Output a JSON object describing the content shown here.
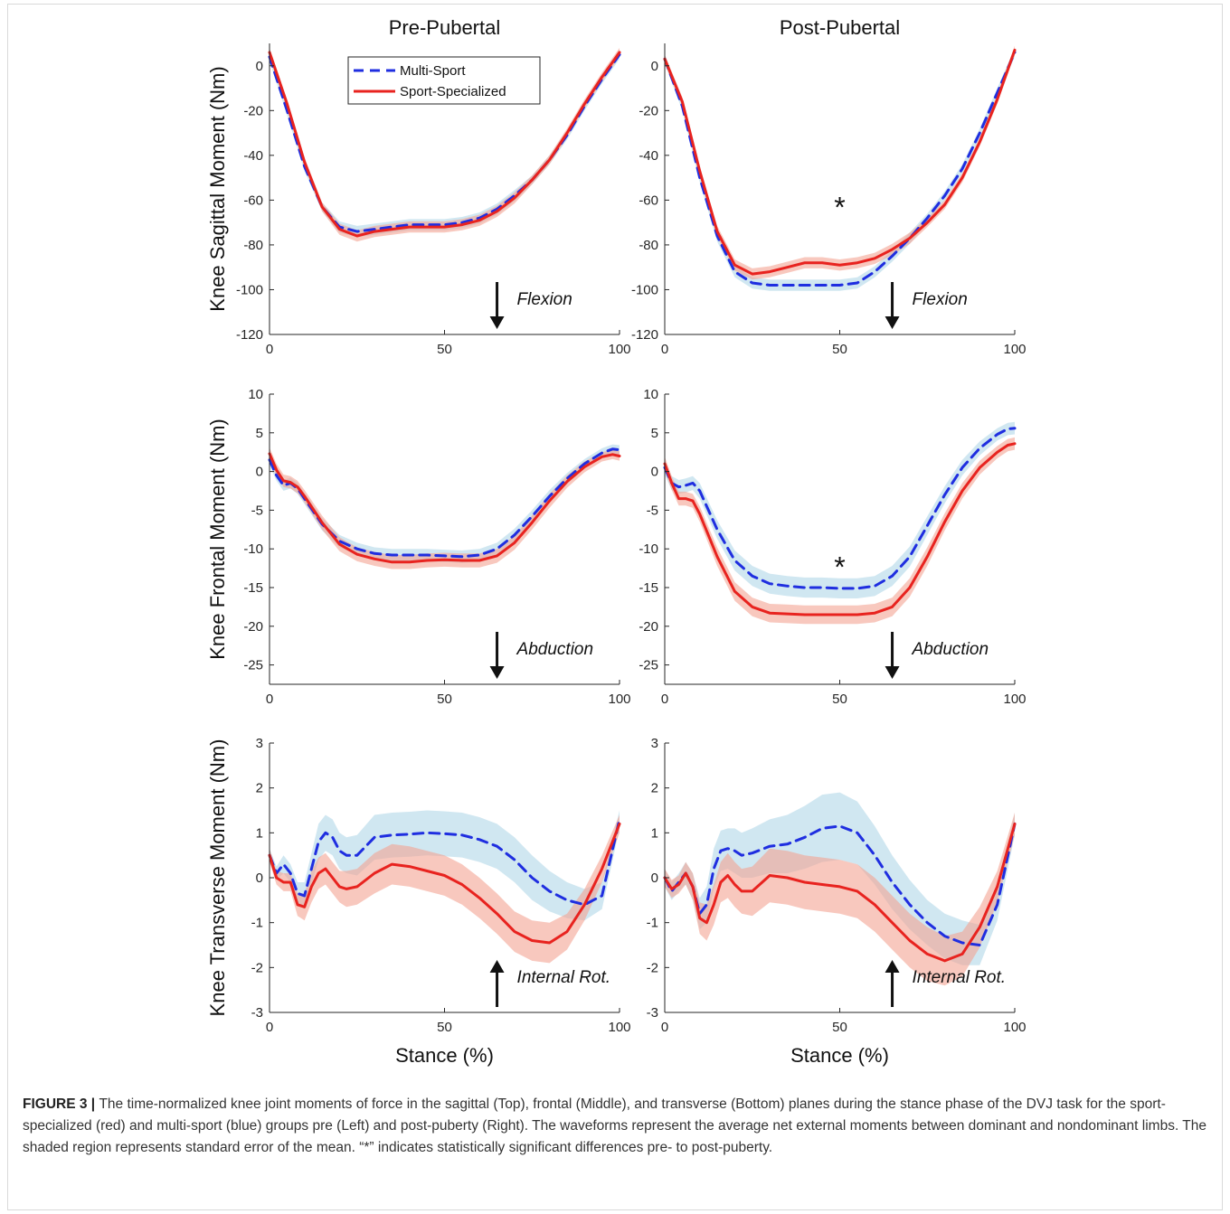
{
  "figure": {
    "caption_lead": "FIGURE 3",
    "caption_sep": " | ",
    "caption_text": "The time-normalized knee joint moments of force in the sagittal (Top), frontal (Middle), and transverse (Bottom) planes during the stance phase of the DVJ task for the sport-specialized (red) and multi-sport (blue) groups pre (Left) and post-puberty (Right). The waveforms represent the average net external moments between dominant and nondominant limbs. The shaded region represents standard error of the mean. “*” indicates statistically significant differences pre- to post-puberty.",
    "column_titles": [
      "Pre-Pubertal",
      "Post-Pubertal"
    ],
    "xlabel": "Stance (%)",
    "colors": {
      "multi_sport": "#1f2ee0",
      "sport_specialized": "#e8231f",
      "multi_band": "#a9d4e6",
      "spec_band": "#f4a393"
    }
  },
  "chart_data": [
    {
      "type": "line",
      "plane": "sagittal",
      "column": "Pre-Pubertal",
      "ylabel": "Knee Sagittal Moment (Nm)",
      "xlim": [
        0,
        100
      ],
      "ylim": [
        -120,
        10
      ],
      "xticks": [
        0,
        50,
        100
      ],
      "yticks": [
        -120,
        -100,
        -80,
        -60,
        -40,
        -20,
        0
      ],
      "annotation": "Flexion",
      "arrow": "down",
      "significant": false,
      "legend": {
        "entries": [
          "Multi-Sport",
          "Sport-Specialized"
        ],
        "position": "top-center"
      },
      "x": [
        0,
        5,
        10,
        15,
        20,
        25,
        30,
        35,
        40,
        45,
        50,
        55,
        60,
        65,
        70,
        75,
        80,
        85,
        90,
        95,
        100
      ],
      "series": [
        {
          "name": "Multi-Sport",
          "style": "dashed",
          "values": [
            4,
            -20,
            -45,
            -63,
            -72,
            -74,
            -73,
            -72,
            -71,
            -71,
            -71,
            -70,
            -68,
            -64,
            -58,
            -51,
            -42,
            -31,
            -18,
            -6,
            5
          ],
          "se": [
            2,
            2,
            2,
            2,
            2.5,
            2.5,
            2.5,
            2.5,
            2.5,
            2.5,
            2.5,
            2.5,
            2.5,
            2.5,
            2.5,
            2,
            2,
            2,
            2,
            2,
            2
          ]
        },
        {
          "name": "Sport-Specialized",
          "style": "solid",
          "values": [
            6,
            -17,
            -43,
            -63,
            -73,
            -76,
            -74,
            -73,
            -72,
            -72,
            -72,
            -71,
            -69,
            -65,
            -59,
            -51,
            -42,
            -30,
            -17,
            -5,
            6
          ],
          "se": [
            2,
            2,
            2,
            2,
            2.5,
            2.5,
            2.5,
            2.5,
            2.5,
            2.5,
            2.5,
            2.5,
            2.5,
            2.5,
            2.5,
            2,
            2,
            2,
            2,
            2,
            2
          ]
        }
      ]
    },
    {
      "type": "line",
      "plane": "sagittal",
      "column": "Post-Pubertal",
      "ylabel": "",
      "xlim": [
        0,
        100
      ],
      "ylim": [
        -120,
        10
      ],
      "xticks": [
        0,
        50,
        100
      ],
      "yticks": [
        -120,
        -100,
        -80,
        -60,
        -40,
        -20,
        0
      ],
      "annotation": "Flexion",
      "arrow": "down",
      "significant": true,
      "x": [
        0,
        5,
        10,
        15,
        20,
        25,
        30,
        35,
        40,
        45,
        50,
        55,
        60,
        65,
        70,
        75,
        80,
        85,
        90,
        95,
        100
      ],
      "series": [
        {
          "name": "Multi-Sport",
          "style": "dashed",
          "values": [
            3,
            -18,
            -50,
            -76,
            -92,
            -97,
            -98,
            -98,
            -98,
            -98,
            -98,
            -97,
            -92,
            -85,
            -77,
            -68,
            -58,
            -46,
            -30,
            -12,
            6
          ],
          "se": [
            2,
            2,
            2,
            2.5,
            2.5,
            2.5,
            2.5,
            2.5,
            2.5,
            2.5,
            2.5,
            2.5,
            2.5,
            2.5,
            2.5,
            2,
            2,
            2,
            2,
            2,
            2
          ]
        },
        {
          "name": "Sport-Specialized",
          "style": "solid",
          "values": [
            3,
            -16,
            -47,
            -74,
            -89,
            -93,
            -92,
            -90,
            -88,
            -88,
            -89,
            -88,
            -86,
            -82,
            -77,
            -70,
            -62,
            -50,
            -34,
            -15,
            7
          ],
          "se": [
            2,
            2,
            2,
            2.5,
            2.5,
            2.5,
            2.5,
            2.5,
            2.5,
            2.5,
            2.5,
            2.5,
            2.5,
            2.5,
            2.5,
            2,
            2,
            2,
            2,
            2,
            2
          ]
        }
      ]
    },
    {
      "type": "line",
      "plane": "frontal",
      "column": "Pre-Pubertal",
      "ylabel": "Knee Frontal Moment (Nm)",
      "xlim": [
        0,
        100
      ],
      "ylim": [
        -27.5,
        10
      ],
      "xticks": [
        0,
        50,
        100
      ],
      "yticks": [
        -25,
        -20,
        -15,
        -10,
        -5,
        0,
        5,
        10
      ],
      "annotation": "Abduction",
      "arrow": "down",
      "significant": false,
      "x": [
        0,
        2,
        4,
        6,
        8,
        10,
        15,
        20,
        25,
        30,
        35,
        40,
        45,
        50,
        55,
        60,
        65,
        70,
        75,
        80,
        85,
        90,
        95,
        98,
        100
      ],
      "series": [
        {
          "name": "Multi-Sport",
          "style": "dashed",
          "values": [
            1.5,
            -0.5,
            -1.8,
            -1.5,
            -2.2,
            -3.5,
            -6.8,
            -9.0,
            -10.0,
            -10.6,
            -10.8,
            -10.8,
            -10.8,
            -10.9,
            -11.0,
            -10.8,
            -10.0,
            -8.2,
            -5.8,
            -3.2,
            -0.9,
            1.0,
            2.4,
            2.9,
            2.8
          ],
          "se": [
            0.7,
            0.7,
            0.7,
            0.7,
            0.7,
            0.7,
            0.8,
            0.8,
            0.8,
            0.8,
            0.8,
            0.8,
            0.8,
            0.8,
            0.8,
            0.8,
            0.8,
            0.8,
            0.8,
            0.8,
            0.7,
            0.6,
            0.6,
            0.6,
            0.6
          ]
        },
        {
          "name": "Sport-Specialized",
          "style": "solid",
          "values": [
            2.3,
            0.2,
            -1.2,
            -1.4,
            -2.0,
            -3.2,
            -6.6,
            -9.4,
            -10.7,
            -11.3,
            -11.7,
            -11.7,
            -11.5,
            -11.4,
            -11.5,
            -11.5,
            -10.9,
            -9.2,
            -6.6,
            -3.8,
            -1.3,
            0.6,
            1.9,
            2.2,
            2.0
          ],
          "se": [
            0.8,
            0.8,
            0.8,
            0.8,
            0.8,
            0.8,
            0.9,
            0.9,
            0.9,
            0.9,
            0.9,
            0.9,
            0.9,
            0.9,
            0.9,
            0.9,
            0.9,
            0.9,
            0.9,
            0.9,
            0.8,
            0.7,
            0.6,
            0.6,
            0.6
          ]
        }
      ]
    },
    {
      "type": "line",
      "plane": "frontal",
      "column": "Post-Pubertal",
      "ylabel": "",
      "xlim": [
        0,
        100
      ],
      "ylim": [
        -27.5,
        10
      ],
      "xticks": [
        0,
        50,
        100
      ],
      "yticks": [
        -25,
        -20,
        -15,
        -10,
        -5,
        0,
        5,
        10
      ],
      "annotation": "Abduction",
      "arrow": "down",
      "significant": true,
      "x": [
        0,
        2,
        4,
        6,
        8,
        10,
        15,
        20,
        25,
        30,
        35,
        40,
        45,
        50,
        55,
        60,
        65,
        70,
        75,
        80,
        85,
        90,
        95,
        98,
        100
      ],
      "series": [
        {
          "name": "Multi-Sport",
          "style": "dashed",
          "values": [
            0.5,
            -1.5,
            -2.0,
            -1.8,
            -1.5,
            -2.5,
            -7.5,
            -11.5,
            -13.5,
            -14.5,
            -14.8,
            -15.0,
            -15.0,
            -15.1,
            -15.1,
            -14.8,
            -13.5,
            -11.0,
            -7.0,
            -3.0,
            0.5,
            3.0,
            4.8,
            5.5,
            5.6
          ],
          "se": [
            0.9,
            0.9,
            0.9,
            0.9,
            0.9,
            1.0,
            1.2,
            1.3,
            1.3,
            1.3,
            1.3,
            1.3,
            1.3,
            1.3,
            1.3,
            1.3,
            1.3,
            1.3,
            1.2,
            1.1,
            1.0,
            0.9,
            0.8,
            0.8,
            0.8
          ]
        },
        {
          "name": "Sport-Specialized",
          "style": "solid",
          "values": [
            1.0,
            -1.5,
            -3.5,
            -3.5,
            -3.8,
            -5.5,
            -11.0,
            -15.5,
            -17.5,
            -18.3,
            -18.4,
            -18.5,
            -18.5,
            -18.5,
            -18.5,
            -18.3,
            -17.5,
            -15.0,
            -11.0,
            -6.5,
            -2.5,
            0.5,
            2.5,
            3.4,
            3.6
          ],
          "se": [
            0.9,
            0.9,
            0.9,
            0.9,
            0.9,
            1.0,
            1.2,
            1.2,
            1.2,
            1.2,
            1.2,
            1.2,
            1.2,
            1.2,
            1.2,
            1.2,
            1.2,
            1.2,
            1.2,
            1.1,
            1.0,
            0.9,
            0.8,
            0.8,
            0.8
          ]
        }
      ]
    },
    {
      "type": "line",
      "plane": "transverse",
      "column": "Pre-Pubertal",
      "ylabel": "Knee Transverse Moment (Nm)",
      "xlim": [
        0,
        100
      ],
      "ylim": [
        -3,
        3
      ],
      "xticks": [
        0,
        50,
        100
      ],
      "yticks": [
        -3,
        -2,
        -1,
        0,
        1,
        2,
        3
      ],
      "annotation": "Internal Rot.",
      "arrow": "up",
      "significant": false,
      "x": [
        0,
        2,
        4,
        6,
        8,
        10,
        12,
        14,
        16,
        18,
        20,
        22,
        25,
        30,
        35,
        40,
        45,
        50,
        55,
        60,
        65,
        70,
        75,
        80,
        85,
        90,
        95,
        100
      ],
      "series": [
        {
          "name": "Multi-Sport",
          "style": "dashed",
          "values": [
            0.5,
            0.1,
            0.3,
            0.1,
            -0.35,
            -0.4,
            0.2,
            0.8,
            1.0,
            0.9,
            0.6,
            0.5,
            0.5,
            0.9,
            0.95,
            0.97,
            1.0,
            0.98,
            0.95,
            0.85,
            0.7,
            0.4,
            0.0,
            -0.3,
            -0.5,
            -0.6,
            -0.4,
            1.3
          ],
          "se": [
            0.15,
            0.15,
            0.2,
            0.2,
            0.25,
            0.3,
            0.35,
            0.4,
            0.4,
            0.4,
            0.4,
            0.4,
            0.45,
            0.5,
            0.5,
            0.5,
            0.5,
            0.5,
            0.5,
            0.5,
            0.5,
            0.5,
            0.5,
            0.45,
            0.4,
            0.35,
            0.3,
            0.2
          ]
        },
        {
          "name": "Sport-Specialized",
          "style": "solid",
          "values": [
            0.5,
            0.0,
            -0.1,
            -0.1,
            -0.6,
            -0.65,
            -0.2,
            0.1,
            0.2,
            0.0,
            -0.2,
            -0.25,
            -0.2,
            0.1,
            0.3,
            0.25,
            0.15,
            0.05,
            -0.15,
            -0.45,
            -0.8,
            -1.2,
            -1.4,
            -1.45,
            -1.2,
            -0.6,
            0.2,
            1.2
          ],
          "se": [
            0.15,
            0.15,
            0.2,
            0.2,
            0.25,
            0.3,
            0.35,
            0.35,
            0.35,
            0.35,
            0.35,
            0.4,
            0.4,
            0.45,
            0.45,
            0.45,
            0.45,
            0.45,
            0.45,
            0.45,
            0.45,
            0.45,
            0.45,
            0.45,
            0.4,
            0.35,
            0.3,
            0.2
          ]
        }
      ]
    },
    {
      "type": "line",
      "plane": "transverse",
      "column": "Post-Pubertal",
      "ylabel": "",
      "xlim": [
        0,
        100
      ],
      "ylim": [
        -3,
        3
      ],
      "xticks": [
        0,
        50,
        100
      ],
      "yticks": [
        -3,
        -2,
        -1,
        0,
        1,
        2,
        3
      ],
      "annotation": "Internal Rot.",
      "arrow": "up",
      "significant": false,
      "x": [
        0,
        2,
        4,
        6,
        8,
        10,
        12,
        14,
        16,
        18,
        20,
        22,
        25,
        30,
        35,
        40,
        45,
        50,
        55,
        60,
        65,
        70,
        75,
        80,
        85,
        90,
        95,
        100
      ],
      "series": [
        {
          "name": "Multi-Sport",
          "style": "dashed",
          "values": [
            0.0,
            -0.3,
            -0.1,
            0.1,
            -0.2,
            -0.8,
            -0.6,
            0.2,
            0.6,
            0.65,
            0.6,
            0.5,
            0.55,
            0.7,
            0.75,
            0.9,
            1.1,
            1.15,
            1.0,
            0.5,
            -0.1,
            -0.6,
            -1.0,
            -1.3,
            -1.45,
            -1.5,
            -0.6,
            1.2
          ],
          "se": [
            0.2,
            0.2,
            0.2,
            0.25,
            0.3,
            0.35,
            0.4,
            0.45,
            0.45,
            0.45,
            0.5,
            0.5,
            0.55,
            0.6,
            0.65,
            0.7,
            0.75,
            0.75,
            0.7,
            0.65,
            0.6,
            0.55,
            0.5,
            0.5,
            0.5,
            0.45,
            0.35,
            0.25
          ]
        },
        {
          "name": "Sport-Specialized",
          "style": "solid",
          "values": [
            0.0,
            -0.25,
            -0.15,
            0.1,
            -0.2,
            -0.9,
            -1.0,
            -0.6,
            -0.1,
            0.05,
            -0.15,
            -0.3,
            -0.3,
            0.05,
            0.0,
            -0.1,
            -0.15,
            -0.2,
            -0.3,
            -0.6,
            -1.0,
            -1.4,
            -1.7,
            -1.85,
            -1.7,
            -1.1,
            -0.2,
            1.2
          ],
          "se": [
            0.2,
            0.2,
            0.2,
            0.25,
            0.3,
            0.35,
            0.4,
            0.45,
            0.45,
            0.5,
            0.5,
            0.5,
            0.55,
            0.6,
            0.6,
            0.6,
            0.6,
            0.6,
            0.6,
            0.6,
            0.6,
            0.6,
            0.6,
            0.55,
            0.5,
            0.45,
            0.35,
            0.25
          ]
        }
      ]
    }
  ]
}
